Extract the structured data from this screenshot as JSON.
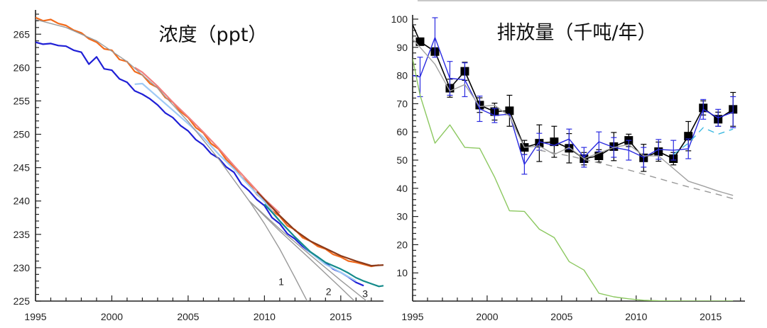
{
  "chart_data": [
    {
      "type": "line",
      "title": "浓度（ppt）",
      "xlabel": "",
      "ylabel": "",
      "xlim": [
        1995,
        2017.8
      ],
      "ylim": [
        225,
        268
      ],
      "xticks": [
        1995,
        2000,
        2005,
        2010,
        2015
      ],
      "yticks": [
        225,
        230,
        235,
        240,
        245,
        250,
        255,
        260,
        265
      ],
      "grid": false,
      "colors": {
        "orange": "#f26a1b",
        "pink": "#f08080",
        "brown": "#8b3a1a",
        "blue": "#1f1fd6",
        "lightblue": "#9fcaf5",
        "teal": "#138a8a",
        "gray": "#9a9a9a"
      },
      "series": [
        {
          "name": "orange",
          "color": "orange",
          "x": [
            1995,
            1995.5,
            1996,
            1996.5,
            1997,
            1997.5,
            1998,
            1998.5,
            1999,
            1999.5,
            2000,
            2000.5,
            2001,
            2001.5,
            2002,
            2002.5,
            2003,
            2003.5,
            2004,
            2004.5,
            2005,
            2005.5,
            2006,
            2006.5,
            2007,
            2007.5,
            2008,
            2008.5,
            2009,
            2009.5,
            2010,
            2010.5,
            2011,
            2011.5,
            2012,
            2012.5,
            2013,
            2013.5,
            2014,
            2014.5,
            2015,
            2015.5,
            2016,
            2016.5,
            2017,
            2017.5
          ],
          "y": [
            267.5,
            267.0,
            267.2,
            266.6,
            266.3,
            265.6,
            265.2,
            264.3,
            263.8,
            262.8,
            262.6,
            261.2,
            260.9,
            259.4,
            258.9,
            257.6,
            257.0,
            255.5,
            254.8,
            253.4,
            252.5,
            251.0,
            250.2,
            248.6,
            247.8,
            246.2,
            245.1,
            243.6,
            242.6,
            241.0,
            240.0,
            238.5,
            237.7,
            236.3,
            235.7,
            234.5,
            234.0,
            233.2,
            232.8,
            232.0,
            231.6,
            231.0,
            230.8,
            230.5,
            230.2,
            230.4
          ]
        },
        {
          "name": "pink",
          "color": "pink",
          "x": [
            2001.5,
            2002,
            2003,
            2004,
            2005,
            2006,
            2007,
            2008,
            2009,
            2010,
            2011
          ],
          "y": [
            260.0,
            259.3,
            257.2,
            254.8,
            252.6,
            250.3,
            247.9,
            245.3,
            242.8,
            240.3,
            238.2
          ]
        },
        {
          "name": "brown",
          "color": "brown",
          "x": [
            2009.5,
            2010,
            2011,
            2012,
            2013,
            2014,
            2015,
            2016,
            2017,
            2017.8
          ],
          "y": [
            241.4,
            240.2,
            237.8,
            235.6,
            234.0,
            232.9,
            231.8,
            231.0,
            230.3,
            230.4
          ]
        },
        {
          "name": "blue",
          "color": "blue",
          "x": [
            1995,
            1995.5,
            1996,
            1996.5,
            1997,
            1997.5,
            1998,
            1998.5,
            1999,
            1999.5,
            2000,
            2000.5,
            2001,
            2001.5,
            2002,
            2002.5,
            2003,
            2003.5,
            2004,
            2004.5,
            2005,
            2005.5,
            2006,
            2006.5,
            2007,
            2007.5,
            2008,
            2008.5,
            2009,
            2009.5,
            2010,
            2010.5,
            2011,
            2011.5,
            2012,
            2012.5,
            2013,
            2013.5,
            2014,
            2014.5,
            2015,
            2015.5,
            2016,
            2016.5
          ],
          "y": [
            263.8,
            263.5,
            263.6,
            263.3,
            263.2,
            262.6,
            262.3,
            260.5,
            261.6,
            259.8,
            259.6,
            258.3,
            257.8,
            256.5,
            256.0,
            255.3,
            254.4,
            253.2,
            252.5,
            251.3,
            250.5,
            249.2,
            248.4,
            247.1,
            246.4,
            245.1,
            244.3,
            242.5,
            241.5,
            240.2,
            239.3,
            237.5,
            236.6,
            235.1,
            234.3,
            233.2,
            232.3,
            231.6,
            230.7,
            229.8,
            229.3,
            228.6,
            227.8,
            227.3
          ]
        },
        {
          "name": "lightblue",
          "color": "lightblue",
          "x": [
            2001.5,
            2002,
            2003,
            2004,
            2005,
            2006,
            2007,
            2008,
            2009,
            2010,
            2011,
            2012,
            2013,
            2014,
            2015,
            2016
          ],
          "y": [
            257.5,
            257.6,
            255.6,
            253.6,
            251.6,
            249.5,
            247.0,
            244.8,
            242.3,
            239.9,
            237.0,
            234.6,
            232.3,
            230.5,
            229.3,
            228.0
          ]
        },
        {
          "name": "teal",
          "color": "teal",
          "x": [
            2010,
            2010.5,
            2011,
            2011.5,
            2012,
            2012.5,
            2013,
            2013.5,
            2014,
            2014.5,
            2015,
            2015.5,
            2016,
            2016.5,
            2017,
            2017.5,
            2017.8
          ],
          "y": [
            239.5,
            238.3,
            237.0,
            235.8,
            234.6,
            233.5,
            232.4,
            231.6,
            230.8,
            230.3,
            229.8,
            229.2,
            228.5,
            228.0,
            227.6,
            227.2,
            227.3
          ]
        },
        {
          "name": "projection",
          "color": "gray",
          "label": "",
          "x": [
            1995,
            1997,
            1999,
            2001,
            2003,
            2005,
            2007,
            2009
          ],
          "y": [
            267.2,
            266.0,
            264.0,
            260.9,
            256.9,
            251.9,
            246.3,
            240.0
          ]
        },
        {
          "name": "projection-1",
          "color": "gray",
          "label": "1",
          "x": [
            2009,
            2010,
            2011,
            2012,
            2012.8
          ],
          "y": [
            240.0,
            236.6,
            232.8,
            228.5,
            225.0
          ]
        },
        {
          "name": "projection-2",
          "color": "gray",
          "label": "2",
          "x": [
            2009,
            2011,
            2013,
            2015,
            2015.9
          ],
          "y": [
            240.0,
            235.5,
            231.3,
            227.0,
            225.0
          ]
        },
        {
          "name": "projection-3",
          "color": "gray",
          "label": "3",
          "x": [
            2009,
            2011,
            2013,
            2015,
            2016.7
          ],
          "y": [
            240.0,
            235.8,
            231.9,
            228.1,
            225.0
          ]
        }
      ],
      "annotations": [
        {
          "text": "1",
          "x": 2011.1,
          "y": 227.4
        },
        {
          "text": "2",
          "x": 2014.2,
          "y": 225.9
        },
        {
          "text": "3",
          "x": 2016.6,
          "y": 225.6
        }
      ]
    },
    {
      "type": "line",
      "title": "排放量（千吨/年）",
      "xlabel": "",
      "ylabel": "",
      "xlim": [
        1995,
        2017.3
      ],
      "ylim": [
        0,
        100
      ],
      "xticks": [
        1995,
        2000,
        2005,
        2010,
        2015
      ],
      "yticks": [
        10,
        20,
        30,
        40,
        50,
        60,
        70,
        80,
        90,
        100
      ],
      "grid": false,
      "colors": {
        "black": "#000000",
        "blue": "#2a2ae0",
        "gray": "#a0a0a0",
        "dashed-gray": "#9a9a9a",
        "cyan": "#3ab8e0",
        "green": "#8cc860"
      },
      "series": [
        {
          "name": "black-markers",
          "color": "black",
          "marker": "square",
          "x": [
            1995,
            1995.5,
            1996.5,
            1997.5,
            1998.5,
            1999.5,
            2000.5,
            2001.5,
            2002.5,
            2003.5,
            2004.5,
            2005.5,
            2006.5,
            2007.5,
            2008.5,
            2009.5,
            2010.5,
            2011.5,
            2012.5,
            2013.5,
            2014.5,
            2015.5,
            2016.5
          ],
          "y": [
            98,
            92,
            88.5,
            75.5,
            81.5,
            69.5,
            67.2,
            67.5,
            54.5,
            56,
            56.5,
            54.2,
            50.5,
            51.5,
            54.8,
            57,
            50.8,
            53,
            50.5,
            58.5,
            68.5,
            64.5,
            68
          ],
          "err": [
            null,
            null,
            null,
            3.2,
            3.2,
            2.6,
            3.0,
            5.5,
            2.5,
            6.5,
            5.5,
            5.2,
            2.2,
            2.2,
            5.0,
            2.2,
            4.8,
            3.4,
            2.2,
            5.2,
            2.5,
            2.5,
            6.0
          ]
        },
        {
          "name": "blue-line",
          "color": "blue",
          "x": [
            1995,
            1995.5,
            1996.5,
            1997.5,
            1998.5,
            1999.5,
            2000.5,
            2001.5,
            2002.5,
            2003.5,
            2004.5,
            2005.5,
            2006.5,
            2007.5,
            2008.5,
            2009.5,
            2010.5,
            2011.5,
            2012.5,
            2013.5,
            2014.5,
            2015.5,
            2016.5
          ],
          "y": [
            80,
            79.5,
            93.5,
            79,
            78.5,
            68.2,
            65.8,
            66.3,
            48.5,
            56.5,
            55.2,
            57.5,
            51.0,
            56.5,
            54.5,
            53.5,
            51.0,
            53.8,
            53.5,
            54,
            68,
            65,
            67
          ],
          "err": [
            null,
            7,
            7,
            6,
            6,
            4.5,
            2.5,
            null,
            3.5,
            3,
            null,
            3.5,
            3.5,
            3.5,
            3.5,
            3.5,
            3.5,
            3.5,
            3.5,
            3.5,
            3.5,
            3.0,
            5.5
          ]
        },
        {
          "name": "gray-line",
          "color": "gray",
          "x": [
            1995,
            1995.5,
            1996.5,
            1997.5,
            1998.5,
            1999.5,
            2000.5,
            2001.5,
            2002.5,
            2003.5,
            2004.5,
            2005.5,
            2006.5,
            2007.5,
            2008.5,
            2009.5,
            2010.5,
            2011.5,
            2012.5,
            2013.5,
            2014.5,
            2015.5,
            2016.5
          ],
          "y": [
            93,
            90,
            84,
            74.5,
            76.8,
            69,
            69.5,
            65.5,
            54.5,
            55,
            52,
            54.5,
            50.5,
            52.5,
            54.5,
            55.5,
            51.5,
            51.5,
            47,
            42.5,
            40.8,
            39,
            37.5
          ]
        },
        {
          "name": "dashed-projection",
          "color": "dashed-gray",
          "dashed": true,
          "x": [
            2003.5,
            2005.5,
            2007.5,
            2009.5,
            2011.5,
            2013.5,
            2015.5,
            2016.5
          ],
          "y": [
            53.5,
            51.5,
            49,
            46.5,
            43.5,
            40.5,
            37.8,
            36.3
          ]
        },
        {
          "name": "cyan-dashed",
          "color": "cyan",
          "dashed": true,
          "x": [
            2012.5,
            2013.5,
            2014.5,
            2015.5,
            2016.5
          ],
          "y": [
            52,
            56,
            61.5,
            59.2,
            61
          ]
        },
        {
          "name": "green-line",
          "color": "green",
          "x": [
            1995,
            1995.5,
            1996.5,
            1997.5,
            1998.5,
            1999.5,
            2000.5,
            2001.5,
            2002.5,
            2003.5,
            2004.5,
            2005.5,
            2006.5,
            2007.5,
            2008.5,
            2009.5,
            2010.5,
            2011.5,
            2013.5,
            2016.5
          ],
          "y": [
            86,
            73,
            56,
            62.5,
            54.5,
            54.2,
            44,
            32,
            31.8,
            25.5,
            22.5,
            14,
            11,
            2.8,
            1.5,
            0.8,
            0.3,
            0.1,
            0,
            0
          ]
        }
      ]
    }
  ]
}
